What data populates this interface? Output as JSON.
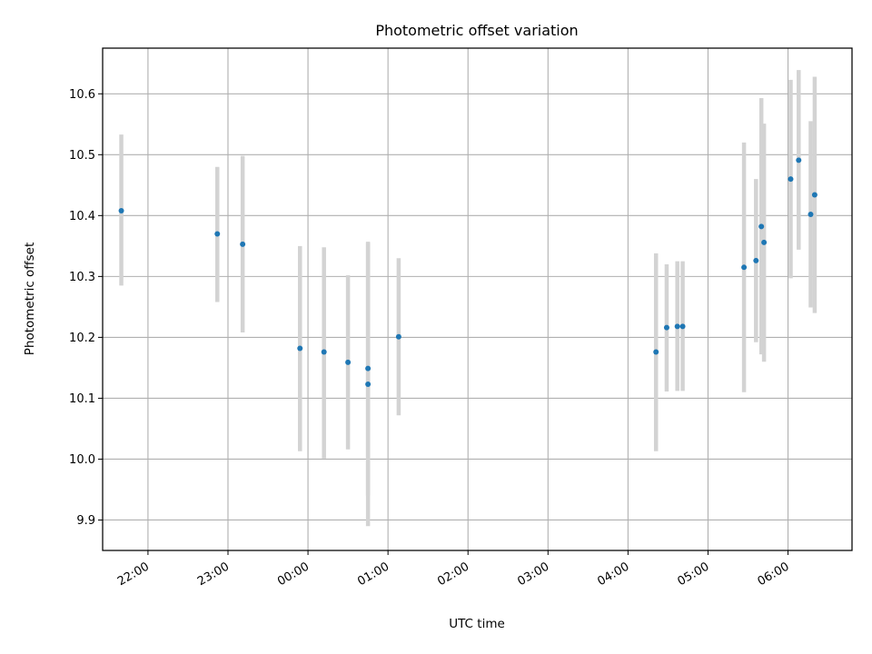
{
  "chart_data": {
    "type": "scatter",
    "title": "Photometric offset variation",
    "xlabel": "UTC time",
    "ylabel": "Photometric offset",
    "x_axis_type": "time",
    "x_start_date": "",
    "xlim": [
      "21:26",
      "06:48"
    ],
    "ylim": [
      9.85,
      10.675
    ],
    "grid": true,
    "x_ticks": [
      "22:00",
      "23:00",
      "00:00",
      "01:00",
      "02:00",
      "03:00",
      "04:00",
      "05:00",
      "06:00"
    ],
    "y_ticks": [
      "9.9",
      "10.0",
      "10.1",
      "10.2",
      "10.3",
      "10.4",
      "10.5",
      "10.6"
    ],
    "colors": {
      "marker": "#1f77b4",
      "errorbar": "#d3d3d3",
      "grid": "#b0b0b0"
    },
    "series": [
      {
        "points": [
          {
            "x": "21:40",
            "y": 10.408,
            "lo": 10.285,
            "hi": 10.533
          },
          {
            "x": "22:52",
            "y": 10.37,
            "lo": 10.258,
            "hi": 10.48
          },
          {
            "x": "23:11",
            "y": 10.353,
            "lo": 10.208,
            "hi": 10.498
          },
          {
            "x": "23:54",
            "y": 10.182,
            "lo": 10.013,
            "hi": 10.35
          },
          {
            "x": "00:12",
            "y": 10.176,
            "lo": 10.001,
            "hi": 10.348
          },
          {
            "x": "00:30",
            "y": 10.159,
            "lo": 10.016,
            "hi": 10.302
          },
          {
            "x": "00:45",
            "y": 10.149,
            "lo": 9.94,
            "hi": 10.357
          },
          {
            "x": "00:45",
            "y": 10.123,
            "lo": 9.89,
            "hi": 10.356
          },
          {
            "x": "01:08",
            "y": 10.201,
            "lo": 10.072,
            "hi": 10.33
          },
          {
            "x": "04:21",
            "y": 10.176,
            "lo": 10.013,
            "hi": 10.338
          },
          {
            "x": "04:29",
            "y": 10.216,
            "lo": 10.111,
            "hi": 10.32
          },
          {
            "x": "04:37",
            "y": 10.218,
            "lo": 10.112,
            "hi": 10.325
          },
          {
            "x": "04:41",
            "y": 10.218,
            "lo": 10.112,
            "hi": 10.325
          },
          {
            "x": "05:27",
            "y": 10.315,
            "lo": 10.11,
            "hi": 10.52
          },
          {
            "x": "05:36",
            "y": 10.326,
            "lo": 10.192,
            "hi": 10.46
          },
          {
            "x": "05:40",
            "y": 10.382,
            "lo": 10.172,
            "hi": 10.593
          },
          {
            "x": "05:42",
            "y": 10.356,
            "lo": 10.16,
            "hi": 10.551
          },
          {
            "x": "06:02",
            "y": 10.46,
            "lo": 10.297,
            "hi": 10.623
          },
          {
            "x": "06:08",
            "y": 10.491,
            "lo": 10.344,
            "hi": 10.639
          },
          {
            "x": "06:17",
            "y": 10.402,
            "lo": 10.249,
            "hi": 10.555
          },
          {
            "x": "06:20",
            "y": 10.434,
            "lo": 10.24,
            "hi": 10.628
          }
        ]
      }
    ]
  }
}
